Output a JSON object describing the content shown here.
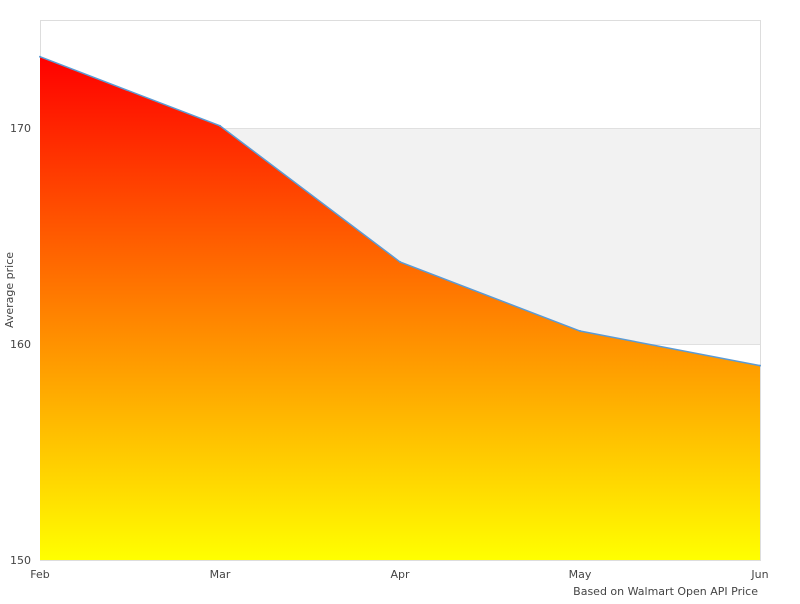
{
  "chart_data": {
    "type": "area",
    "categories": [
      "Feb",
      "Mar",
      "Apr",
      "May",
      "Jun"
    ],
    "series": [
      {
        "values": [
          173.3,
          170.1,
          163.8,
          160.6,
          159.0
        ]
      }
    ],
    "ylabel": "Average price",
    "xlabel": "",
    "ylim": [
      150,
      175
    ],
    "yticks": [
      "150",
      "160",
      "170"
    ],
    "grid": "alternating horizontal bands",
    "fill_gradient": {
      "top": "#ff0000",
      "middle": "#ff8000",
      "bottom": "#ffff00"
    },
    "line_color": "#5b9bd5",
    "band_color": "#f2f2f2",
    "caption": "Based on Walmart Open API Price"
  }
}
